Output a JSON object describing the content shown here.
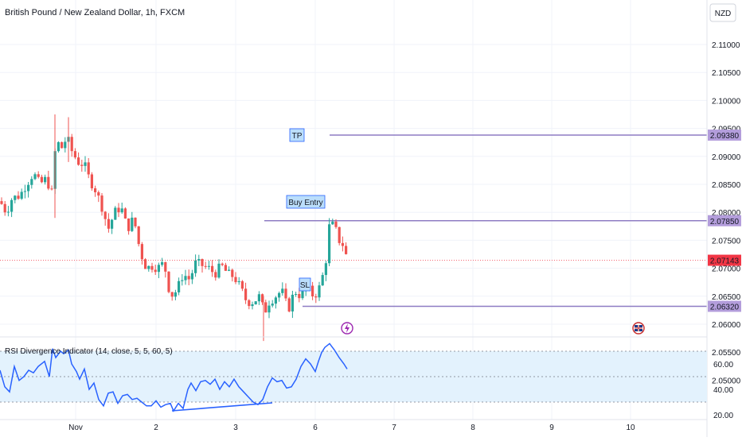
{
  "header": {
    "symbol_title": "British Pound / New Zealand Dollar, 1h, FXCM",
    "currency_button": "NZD"
  },
  "colors": {
    "up": "#26a69a",
    "down": "#ef5350",
    "level_line": "#8e7cc3",
    "rsi_line": "#2962ff",
    "rsi_band": "#e3f2fd",
    "price_tag": "#f23645",
    "label_box_bg": "#bbdefb",
    "label_box_border": "#2962ff"
  },
  "chart_data": [
    {
      "type": "candlestick",
      "title": "British Pound / New Zealand Dollar, 1h, FXCM",
      "ylim": [
        2.045,
        2.115
      ],
      "y_ticks": [
        "2.11000",
        "2.10500",
        "2.10000",
        "2.09500",
        "2.09000",
        "2.08500",
        "2.08000",
        "2.07500",
        "2.07000",
        "2.06500",
        "2.06000",
        "2.05500",
        "2.05000"
      ],
      "x_ticks": [
        "Nov",
        "2",
        "3",
        "6",
        "7",
        "8",
        "9",
        "10"
      ],
      "price_levels": [
        {
          "label": "2.09380",
          "value": 2.0938
        },
        {
          "label": "2.07850",
          "value": 2.0785
        },
        {
          "label": "2.06320",
          "value": 2.0632
        }
      ],
      "current_price": {
        "label": "2.07143",
        "value": 2.07143
      },
      "annotations": [
        "TP",
        "Buy Entry",
        "SL"
      ],
      "close_path": [
        [
          0,
          2.082
        ],
        [
          8,
          2.08
        ],
        [
          15,
          2.0825
        ],
        [
          25,
          2.083
        ],
        [
          33,
          2.085
        ],
        [
          42,
          2.087
        ],
        [
          50,
          2.085
        ],
        [
          58,
          2.086
        ],
        [
          65,
          2.0835
        ],
        [
          68,
          2.09
        ],
        [
          72,
          2.0925
        ],
        [
          78,
          2.0915
        ],
        [
          84,
          2.0935
        ],
        [
          90,
          2.091
        ],
        [
          98,
          2.089
        ],
        [
          106,
          2.0885
        ],
        [
          112,
          2.086
        ],
        [
          120,
          2.084
        ],
        [
          128,
          2.081
        ],
        [
          136,
          2.077
        ],
        [
          144,
          2.08
        ],
        [
          152,
          2.081
        ],
        [
          160,
          2.077
        ],
        [
          168,
          2.079
        ],
        [
          176,
          2.073
        ],
        [
          184,
          2.07
        ],
        [
          192,
          2.0705
        ],
        [
          198,
          2.07
        ],
        [
          206,
          2.071
        ],
        [
          214,
          2.065
        ],
        [
          222,
          2.066
        ],
        [
          230,
          2.069
        ],
        [
          238,
          2.068
        ],
        [
          246,
          2.071
        ],
        [
          254,
          2.0705
        ],
        [
          262,
          2.07
        ],
        [
          270,
          2.069
        ],
        [
          278,
          2.0705
        ],
        [
          286,
          2.069
        ],
        [
          294,
          2.0685
        ],
        [
          302,
          2.0665
        ],
        [
          310,
          2.064
        ],
        [
          318,
          2.064
        ],
        [
          326,
          2.065
        ],
        [
          332,
          2.062
        ],
        [
          338,
          2.064
        ],
        [
          346,
          2.065
        ],
        [
          354,
          2.066
        ],
        [
          362,
          2.0625
        ],
        [
          370,
          2.066
        ],
        [
          378,
          2.065
        ],
        [
          386,
          2.0665
        ],
        [
          394,
          2.065
        ],
        [
          400,
          2.066
        ],
        [
          406,
          2.069
        ],
        [
          410,
          2.072
        ],
        [
          414,
          2.078
        ],
        [
          420,
          2.0775
        ],
        [
          426,
          2.075
        ],
        [
          432,
          2.074
        ],
        [
          436,
          2.0714
        ]
      ]
    },
    {
      "type": "line",
      "title": "RSI Divergence Indicator (14, close, 5, 5, 60, 5)",
      "ylim": [
        15,
        80
      ],
      "y_ticks": [
        "60.00",
        "40.00",
        "20.00"
      ],
      "bands": [
        70,
        30
      ],
      "x": [
        0,
        6,
        12,
        18,
        24,
        30,
        36,
        42,
        48,
        56,
        62,
        66,
        70,
        76,
        80,
        86,
        90,
        96,
        100,
        106,
        112,
        118,
        124,
        130,
        136,
        142,
        148,
        154,
        160,
        166,
        172,
        178,
        184,
        190,
        196,
        202,
        208,
        214,
        218,
        224,
        230,
        236,
        240,
        246,
        252,
        258,
        264,
        270,
        276,
        282,
        288,
        294,
        300,
        306,
        312,
        318,
        324,
        330,
        336,
        342,
        348,
        354,
        360,
        366,
        372,
        378,
        384,
        390,
        396,
        400,
        404,
        408,
        414,
        420,
        426,
        432,
        436
      ],
      "values": [
        55,
        42,
        38,
        58,
        47,
        50,
        55,
        53,
        58,
        62,
        50,
        72,
        65,
        70,
        68,
        71,
        60,
        54,
        48,
        56,
        40,
        45,
        32,
        27,
        37,
        38,
        29,
        35,
        36,
        32,
        33,
        30,
        27,
        27,
        31,
        26,
        28,
        29,
        23,
        29,
        25,
        40,
        45,
        39,
        46,
        47,
        44,
        48,
        40,
        46,
        42,
        48,
        42,
        38,
        34,
        30,
        28,
        32,
        42,
        49,
        46,
        47,
        41,
        42,
        48,
        58,
        64,
        60,
        54,
        62,
        69,
        73,
        76,
        71,
        65,
        60,
        56
      ]
    }
  ]
}
